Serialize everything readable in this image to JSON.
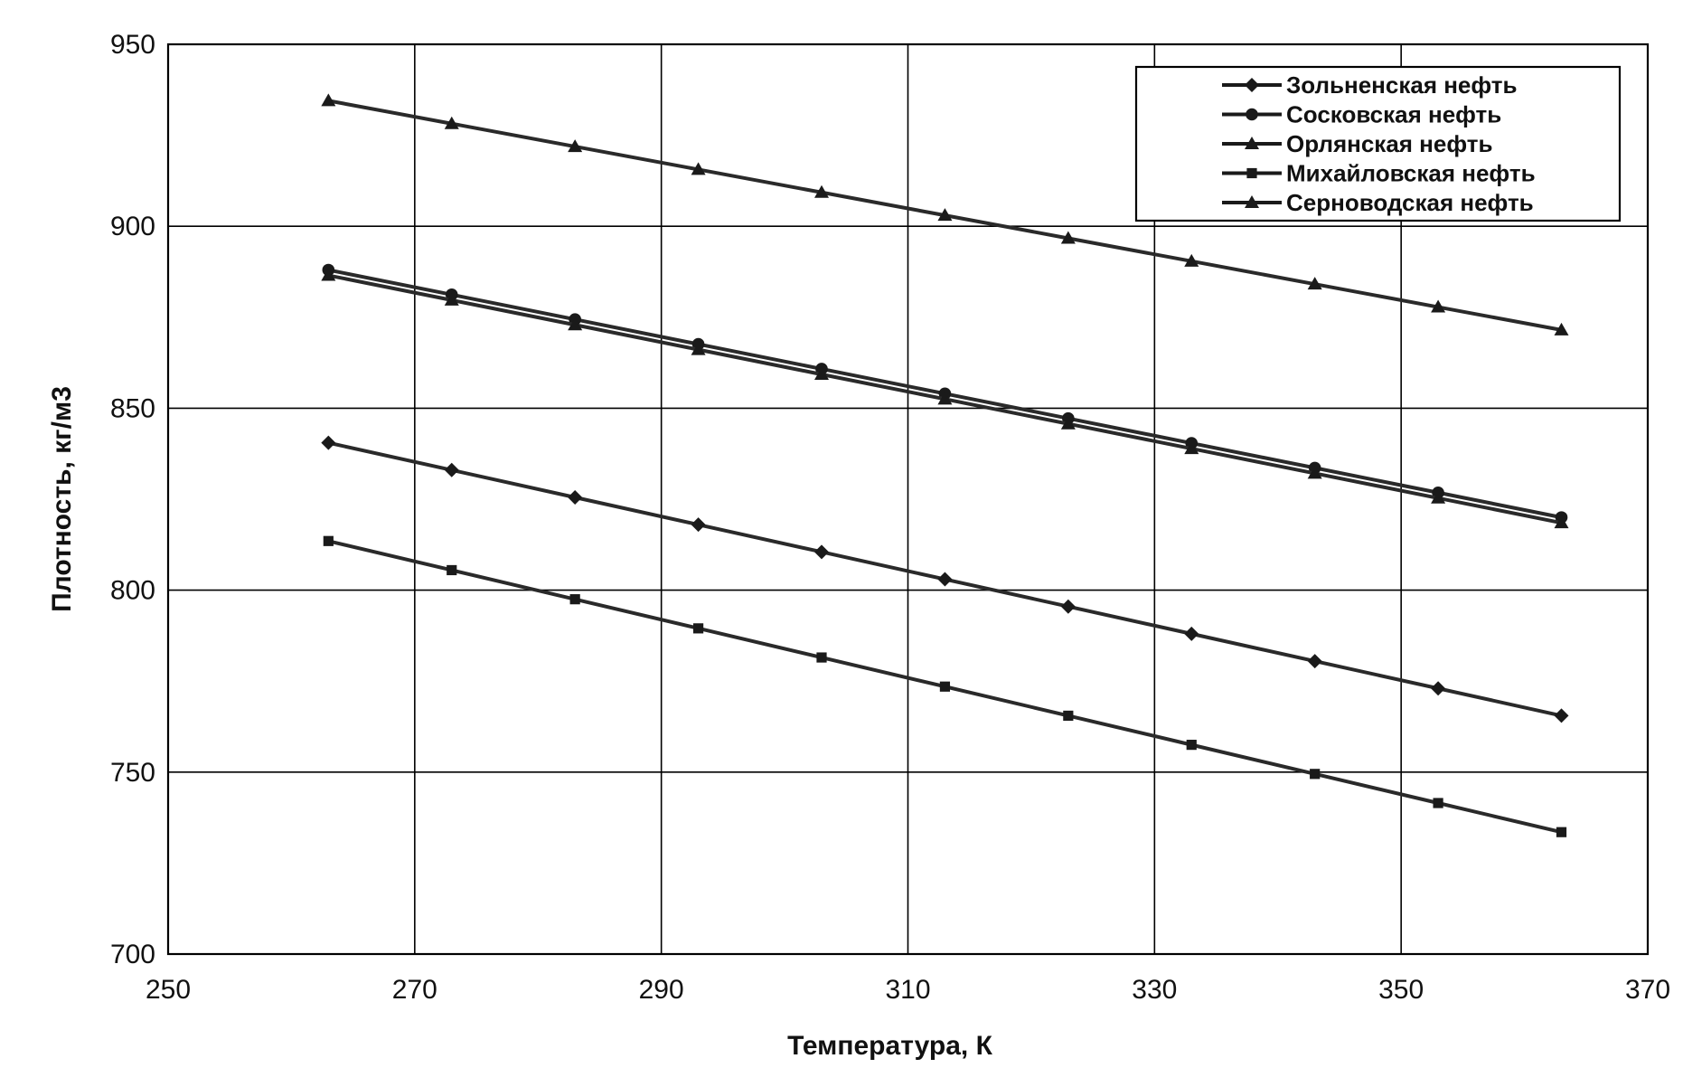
{
  "chart_data": {
    "type": "line",
    "title": "",
    "xlabel": "Температура, К",
    "ylabel": "Плотность, кг/м3",
    "xlim": [
      250,
      370
    ],
    "ylim": [
      700,
      950
    ],
    "xticks": [
      "250",
      "270",
      "290",
      "310",
      "330",
      "350",
      "370"
    ],
    "yticks": [
      "700",
      "750",
      "800",
      "850",
      "900",
      "950"
    ],
    "grid": true,
    "legend_position": "top-right",
    "x": [
      263,
      273,
      283,
      293,
      303,
      313,
      323,
      333,
      343,
      353,
      363
    ],
    "series": [
      {
        "name": "Зольненская нефть",
        "marker": "diamond",
        "values": [
          840.5,
          833,
          825.5,
          818,
          810.5,
          803,
          795.5,
          788,
          780.5,
          773,
          765.5
        ]
      },
      {
        "name": "Сосковская нефть",
        "marker": "circle",
        "values": [
          888,
          881.2,
          874.4,
          867.6,
          860.8,
          854,
          847.2,
          840.4,
          833.6,
          826.8,
          820
        ]
      },
      {
        "name": "Орлянская нефть",
        "marker": "triangle",
        "values": [
          934.5,
          928.2,
          921.9,
          915.6,
          909.3,
          903,
          896.7,
          890.4,
          884.1,
          877.8,
          871.5
        ]
      },
      {
        "name": "Михайловская нефть",
        "marker": "square",
        "values": [
          813.5,
          805.5,
          797.5,
          789.5,
          781.5,
          773.5,
          765.5,
          757.5,
          749.5,
          741.5,
          733.5
        ]
      },
      {
        "name": "Серноводская нефть",
        "marker": "triangle",
        "values": [
          886.5,
          879.7,
          872.9,
          866.1,
          859.3,
          852.5,
          845.7,
          838.9,
          832.1,
          825.3,
          818.5
        ]
      }
    ]
  }
}
